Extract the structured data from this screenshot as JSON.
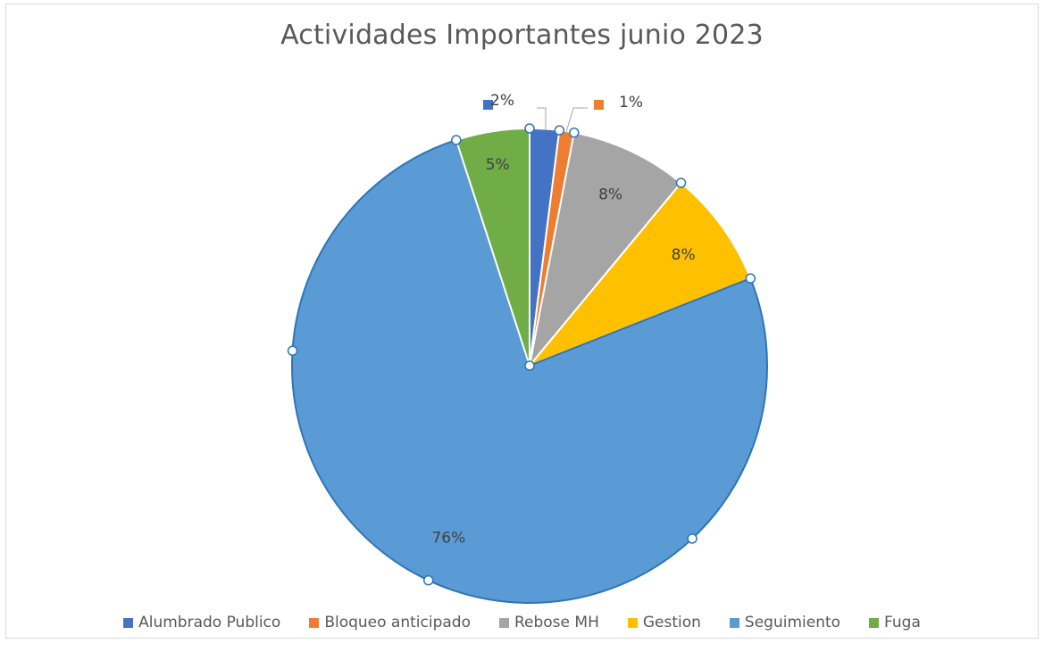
{
  "chart_data": {
    "type": "pie",
    "title": "Actividades Importantes junio 2023",
    "categories": [
      "Alumbrado Publico",
      "Bloqueo anticipado",
      "Rebose MH",
      "Gestion",
      "Seguimiento",
      "Fuga"
    ],
    "values": [
      2,
      1,
      8,
      8,
      76,
      5
    ],
    "data_labels": [
      "2%",
      "1%",
      "8%",
      "8%",
      "76%",
      "5%"
    ],
    "colors": [
      "#4472C4",
      "#ED7D31",
      "#A5A5A5",
      "#FFC000",
      "#5B9BD5",
      "#70AD47"
    ],
    "legend_position": "bottom",
    "selected_slice": "Seguimiento"
  }
}
